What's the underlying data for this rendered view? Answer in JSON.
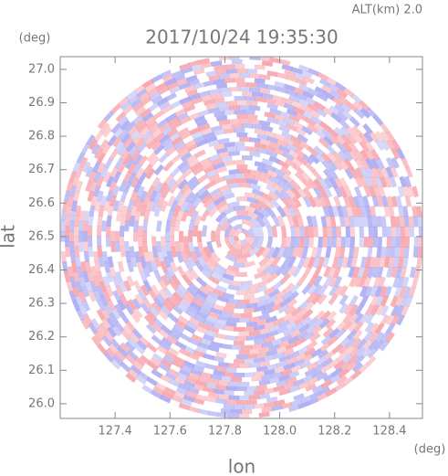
{
  "chart_data": {
    "type": "radar-image",
    "title": "2017/10/24 19:35:30",
    "subtitle": "ALT(km) 2.0",
    "y_unit": "(deg)",
    "x_unit": "(deg)",
    "x_label": "lon",
    "y_label": "lat",
    "xlim": [
      127.2,
      128.52
    ],
    "ylim": [
      25.956,
      27.038
    ],
    "xticks": [
      127.4,
      127.6,
      127.8,
      {
        "value": 128.0,
        "label": "128.0"
      },
      128.2,
      128.4
    ],
    "yticks": [
      {
        "value": 26.0,
        "label": "26.0"
      },
      26.1,
      26.2,
      26.3,
      26.4,
      26.5,
      26.6,
      26.7,
      26.8,
      26.9,
      {
        "value": 27.0,
        "label": "27.0"
      }
    ]
  }
}
